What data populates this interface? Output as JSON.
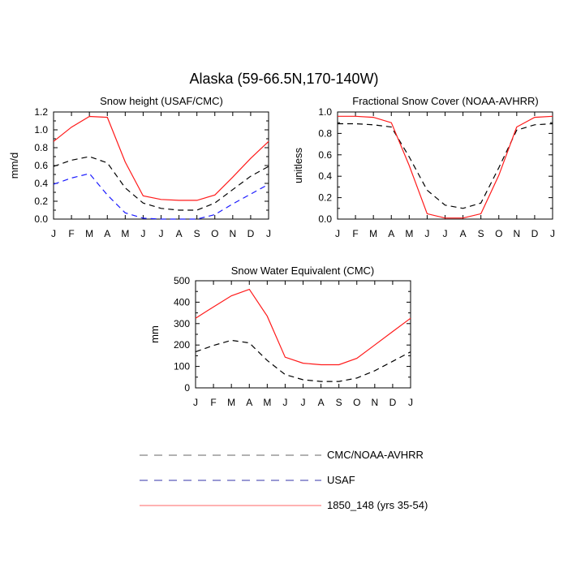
{
  "figure": {
    "title": "Alaska (59-66.5N,170-140W)"
  },
  "colors": {
    "obs": "#000000",
    "usaf": "#1a1aff",
    "model": "#ff1a1a",
    "legend_obs": "#666666",
    "legend_usaf": "#3333aa",
    "legend_model": "#ff6666"
  },
  "legend": {
    "items": [
      {
        "label": "CMC/NOAA-AVHRR",
        "style": "dashed",
        "color_key": "legend_obs"
      },
      {
        "label": "USAF",
        "style": "dashed",
        "color_key": "legend_usaf"
      },
      {
        "label": "1850_148 (yrs 35-54)",
        "style": "solid",
        "color_key": "legend_model"
      }
    ]
  },
  "chart_data": [
    {
      "id": "snow-height",
      "type": "line",
      "title": "Snow height (USAF/CMC)",
      "ylabel": "mm/d",
      "xlabel": "",
      "categories": [
        "J",
        "F",
        "M",
        "A",
        "M",
        "J",
        "J",
        "A",
        "S",
        "O",
        "N",
        "D",
        "J"
      ],
      "ylim": [
        0,
        1.2
      ],
      "yticks": [
        0.0,
        0.2,
        0.4,
        0.6,
        0.8,
        1.0,
        1.2
      ],
      "ytick_labels": [
        "0.0",
        "0.2",
        "0.4",
        "0.6",
        "0.8",
        "1.0",
        "1.2"
      ],
      "series": [
        {
          "name": "CMC/NOAA-AVHRR",
          "style": "dashed",
          "color_key": "obs",
          "values": [
            0.59,
            0.66,
            0.7,
            0.63,
            0.35,
            0.18,
            0.12,
            0.1,
            0.1,
            0.18,
            0.33,
            0.48,
            0.59
          ]
        },
        {
          "name": "USAF",
          "style": "dashed",
          "color_key": "usaf",
          "values": [
            0.39,
            0.46,
            0.51,
            0.27,
            0.07,
            0.01,
            0.0,
            0.0,
            0.0,
            0.05,
            0.17,
            0.28,
            0.39
          ]
        },
        {
          "name": "1850_148 (yrs 35-54)",
          "style": "solid",
          "color_key": "model",
          "values": [
            0.87,
            1.03,
            1.15,
            1.14,
            0.64,
            0.26,
            0.22,
            0.21,
            0.21,
            0.27,
            0.47,
            0.68,
            0.87
          ]
        }
      ]
    },
    {
      "id": "snow-cover",
      "type": "line",
      "title": "Fractional Snow Cover (NOAA-AVHRR)",
      "ylabel": "unitless",
      "xlabel": "",
      "categories": [
        "J",
        "F",
        "M",
        "A",
        "M",
        "J",
        "J",
        "A",
        "S",
        "O",
        "N",
        "D",
        "J"
      ],
      "ylim": [
        0,
        1.0
      ],
      "yticks": [
        0.0,
        0.2,
        0.4,
        0.6,
        0.8,
        1.0
      ],
      "ytick_labels": [
        "0.0",
        "0.2",
        "0.4",
        "0.6",
        "0.8",
        "1.0"
      ],
      "series": [
        {
          "name": "CMC/NOAA-AVHRR",
          "style": "dashed",
          "color_key": "obs",
          "values": [
            0.89,
            0.89,
            0.88,
            0.86,
            0.58,
            0.27,
            0.13,
            0.1,
            0.15,
            0.48,
            0.83,
            0.88,
            0.89
          ]
        },
        {
          "name": "1850_148 (yrs 35-54)",
          "style": "solid",
          "color_key": "model",
          "values": [
            0.96,
            0.96,
            0.95,
            0.9,
            0.5,
            0.05,
            0.01,
            0.01,
            0.05,
            0.41,
            0.86,
            0.95,
            0.96
          ]
        }
      ]
    },
    {
      "id": "swe",
      "type": "line",
      "title": "Snow Water Equivalent (CMC)",
      "ylabel": "mm",
      "xlabel": "",
      "categories": [
        "J",
        "F",
        "M",
        "A",
        "M",
        "J",
        "J",
        "A",
        "S",
        "O",
        "N",
        "D",
        "J"
      ],
      "ylim": [
        0,
        500
      ],
      "yticks": [
        0,
        100,
        200,
        300,
        400,
        500
      ],
      "ytick_labels": [
        "0",
        "100",
        "200",
        "300",
        "400",
        "500"
      ],
      "series": [
        {
          "name": "CMC/NOAA-AVHRR",
          "style": "dashed",
          "color_key": "obs",
          "values": [
            168,
            198,
            222,
            210,
            128,
            62,
            38,
            30,
            30,
            46,
            80,
            124,
            168
          ]
        },
        {
          "name": "1850_148 (yrs 35-54)",
          "style": "solid",
          "color_key": "model",
          "values": [
            325,
            378,
            430,
            460,
            335,
            143,
            115,
            108,
            108,
            138,
            200,
            263,
            325
          ]
        }
      ]
    }
  ]
}
